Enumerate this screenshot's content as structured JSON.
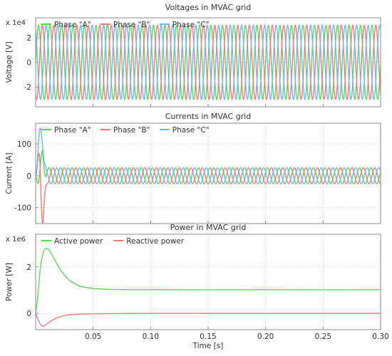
{
  "chart_data": [
    {
      "type": "line",
      "title": "Voltages in MVAC grid",
      "ylabel": "Voltage [V]",
      "y_multiplier": "x 1e4",
      "xlim": [
        0,
        0.3
      ],
      "ylim": [
        -3.6,
        3.6
      ],
      "yticks": [
        2,
        0,
        -2
      ],
      "grid": true,
      "legend_position": "top-left",
      "waveform": {
        "frequency_hz": 100,
        "amplitude": 3.0
      },
      "series": [
        {
          "name": "Phase \"A\"",
          "color": "#5dd45d",
          "phase_deg": 0
        },
        {
          "name": "Phase \"B\"",
          "color": "#f07a7a",
          "phase_deg": -120
        },
        {
          "name": "Phase \"C\"",
          "color": "#6fb6f0",
          "phase_deg": 120
        }
      ]
    },
    {
      "type": "line",
      "title": "Currents in MVAC grid",
      "ylabel": "Current [A]",
      "xlim": [
        0,
        0.3
      ],
      "ylim": [
        -150,
        165
      ],
      "yticks": [
        100,
        0,
        -100
      ],
      "grid": true,
      "legend_position": "top-left",
      "waveform": {
        "frequency_hz": 100,
        "amplitude": 25
      },
      "series": [
        {
          "name": "Phase \"A\"",
          "color": "#5dd45d",
          "phase_deg": 30,
          "peak_points": [
            [
              0.0,
              0
            ],
            [
              0.002,
              -25
            ],
            [
              0.006,
              80
            ],
            [
              0.009,
              35
            ]
          ]
        },
        {
          "name": "Phase \"B\"",
          "color": "#f07a7a",
          "phase_deg": -90,
          "peak_points": [
            [
              0.0,
              0
            ],
            [
              0.003,
              70
            ],
            [
              0.006,
              -148
            ],
            [
              0.01,
              -40
            ]
          ]
        },
        {
          "name": "Phase \"C\"",
          "color": "#6fb6f0",
          "phase_deg": 150,
          "peak_points": [
            [
              0.0,
              0
            ],
            [
              0.004,
              150
            ],
            [
              0.008,
              40
            ],
            [
              0.011,
              -20
            ]
          ]
        }
      ]
    },
    {
      "type": "line",
      "title": "Power in MVAC grid",
      "ylabel": "Power [W]",
      "y_multiplier": "x 1e6",
      "xlabel": "Time [s]",
      "xlim": [
        0,
        0.3
      ],
      "ylim": [
        -0.7,
        3.4
      ],
      "yticks": [
        2,
        0
      ],
      "xticks": [
        0.05,
        0.1,
        0.15,
        0.2,
        0.25,
        0.3
      ],
      "grid": true,
      "legend_position": "top-left",
      "series": [
        {
          "name": "Active power",
          "color": "#5dd45d",
          "x": [
            0,
            0.002,
            0.004,
            0.006,
            0.008,
            0.01,
            0.012,
            0.015,
            0.02,
            0.025,
            0.03,
            0.035,
            0.04,
            0.05,
            0.06,
            0.08,
            0.1,
            0.15,
            0.2,
            0.25,
            0.3
          ],
          "y": [
            0,
            0.8,
            1.9,
            2.5,
            2.75,
            2.78,
            2.7,
            2.45,
            2.0,
            1.65,
            1.4,
            1.25,
            1.15,
            1.07,
            1.04,
            1.02,
            1.02,
            1.01,
            1.02,
            1.01,
            1.02
          ]
        },
        {
          "name": "Reactive power",
          "color": "#f07a7a",
          "x": [
            0,
            0.002,
            0.004,
            0.006,
            0.008,
            0.01,
            0.012,
            0.015,
            0.02,
            0.025,
            0.03,
            0.04,
            0.05,
            0.07,
            0.1,
            0.15,
            0.2,
            0.25,
            0.3
          ],
          "y": [
            0,
            -0.25,
            -0.45,
            -0.55,
            -0.52,
            -0.45,
            -0.38,
            -0.28,
            -0.17,
            -0.1,
            -0.06,
            -0.03,
            -0.02,
            -0.01,
            0,
            0,
            0,
            0,
            0
          ]
        }
      ]
    }
  ]
}
